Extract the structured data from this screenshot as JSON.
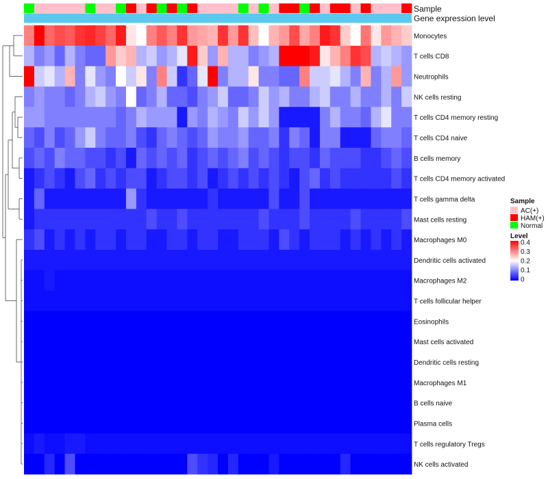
{
  "chart_data": {
    "type": "heatmap",
    "title": "",
    "annotation_tracks": [
      "Sample",
      "Gene expression level"
    ],
    "rows": [
      "Monocytes",
      "T cells CD8",
      "Neutrophils",
      "NK cells resting",
      "T cells CD4 memory resting",
      "T cells CD4 naive",
      "B cells memory",
      "T cells CD4 memory activated",
      "T cells gamma delta",
      "Mast cells resting",
      "Macrophages M0",
      "Dendritic cells activated",
      "Macrophages M2",
      "T cells follicular helper",
      "Eosinophils",
      "Mast cells activated",
      "Dendritic cells resting",
      "Macrophages M1",
      "B cells naive",
      "Plasma cells",
      "T cells regulatory  Tregs",
      "NK cells activated"
    ],
    "sample_groups": [
      "Normal",
      "AC(+)",
      "AC(+)",
      "AC(+)",
      "AC(+)",
      "AC(+)",
      "Normal",
      "AC(+)",
      "AC(+)",
      "Normal",
      "HAM(+)",
      "AC(+)",
      "HAM(+)",
      "Normal",
      "HAM(+)",
      "Normal",
      "HAM(+)",
      "AC(+)",
      "AC(+)",
      "AC(+)",
      "AC(+)",
      "Normal",
      "AC(+)",
      "Normal",
      "AC(+)",
      "HAM(+)",
      "HAM(+)",
      "Normal",
      "HAM(+)",
      "AC(+)",
      "HAM(+)",
      "HAM(+)",
      "AC(+)",
      "HAM(+)",
      "AC(+)",
      "AC(+)",
      "AC(+)",
      "HAM(+)"
    ],
    "values": [
      [
        0.3,
        0.4,
        0.32,
        0.34,
        0.33,
        0.36,
        0.37,
        0.35,
        0.32,
        0.38,
        0.22,
        0.2,
        0.3,
        0.33,
        0.3,
        0.36,
        0.28,
        0.27,
        0.26,
        0.36,
        0.28,
        0.36,
        0.25,
        0.2,
        0.26,
        0.28,
        0.34,
        0.27,
        0.3,
        0.38,
        0.36,
        0.24,
        0.2,
        0.31,
        0.22,
        0.28,
        0.26,
        0.24
      ],
      [
        0.14,
        0.1,
        0.12,
        0.08,
        0.14,
        0.1,
        0.08,
        0.08,
        0.28,
        0.24,
        0.26,
        0.14,
        0.16,
        0.12,
        0.14,
        0.18,
        0.38,
        0.24,
        0.12,
        0.26,
        0.14,
        0.14,
        0.1,
        0.12,
        0.14,
        0.4,
        0.4,
        0.4,
        0.38,
        0.22,
        0.26,
        0.3,
        0.36,
        0.34,
        0.14,
        0.16,
        0.14,
        0.12
      ],
      [
        0.4,
        0.16,
        0.18,
        0.14,
        0.26,
        0.1,
        0.18,
        0.12,
        0.1,
        0.2,
        0.16,
        0.22,
        0.1,
        0.3,
        0.16,
        0.04,
        0.08,
        0.18,
        0.4,
        0.1,
        0.14,
        0.14,
        0.22,
        0.1,
        0.1,
        0.08,
        0.08,
        0.3,
        0.16,
        0.16,
        0.18,
        0.14,
        0.1,
        0.26,
        0.1,
        0.14,
        0.28,
        0.12
      ],
      [
        0.1,
        0.12,
        0.1,
        0.1,
        0.08,
        0.1,
        0.14,
        0.16,
        0.12,
        0.1,
        0.2,
        0.08,
        0.1,
        0.14,
        0.08,
        0.08,
        0.06,
        0.1,
        0.12,
        0.16,
        0.08,
        0.08,
        0.1,
        0.16,
        0.12,
        0.14,
        0.1,
        0.1,
        0.14,
        0.16,
        0.1,
        0.1,
        0.14,
        0.1,
        0.1,
        0.14,
        0.1,
        0.16
      ],
      [
        0.12,
        0.12,
        0.1,
        0.1,
        0.1,
        0.1,
        0.1,
        0.1,
        0.1,
        0.08,
        0.1,
        0.14,
        0.12,
        0.12,
        0.12,
        0.02,
        0.12,
        0.1,
        0.14,
        0.12,
        0.1,
        0.16,
        0.12,
        0.16,
        0.12,
        0.02,
        0.02,
        0.02,
        0.02,
        0.1,
        0.14,
        0.1,
        0.1,
        0.08,
        0.14,
        0.18,
        0.1,
        0.1
      ],
      [
        0.08,
        0.06,
        0.1,
        0.06,
        0.08,
        0.12,
        0.16,
        0.1,
        0.08,
        0.08,
        0.1,
        0.06,
        0.04,
        0.08,
        0.1,
        0.08,
        0.06,
        0.08,
        0.12,
        0.1,
        0.1,
        0.12,
        0.08,
        0.08,
        0.1,
        0.04,
        0.1,
        0.08,
        0.02,
        0.1,
        0.1,
        0.02,
        0.02,
        0.02,
        0.08,
        0.1,
        0.1,
        0.08
      ],
      [
        0.06,
        0.08,
        0.06,
        0.1,
        0.08,
        0.08,
        0.06,
        0.06,
        0.04,
        0.06,
        0.02,
        0.08,
        0.06,
        0.08,
        0.06,
        0.08,
        0.04,
        0.06,
        0.08,
        0.06,
        0.08,
        0.1,
        0.06,
        0.08,
        0.06,
        0.04,
        0.06,
        0.06,
        0.04,
        0.08,
        0.06,
        0.06,
        0.06,
        0.04,
        0.04,
        0.06,
        0.08,
        0.06
      ],
      [
        0.02,
        0.04,
        0.06,
        0.04,
        0.02,
        0.06,
        0.08,
        0.04,
        0.06,
        0.04,
        0.06,
        0.06,
        0.02,
        0.04,
        0.06,
        0.06,
        0.04,
        0.06,
        0.02,
        0.04,
        0.06,
        0.04,
        0.06,
        0.04,
        0.06,
        0.04,
        0.02,
        0.06,
        0.08,
        0.04,
        0.06,
        0.04,
        0.04,
        0.04,
        0.04,
        0.04,
        0.06,
        0.04
      ],
      [
        0.02,
        0.08,
        0.02,
        0.02,
        0.02,
        0.02,
        0.02,
        0.02,
        0.02,
        0.02,
        0.12,
        0.04,
        0.02,
        0.02,
        0.02,
        0.02,
        0.02,
        0.02,
        0.04,
        0.02,
        0.02,
        0.02,
        0.02,
        0.02,
        0.06,
        0.02,
        0.02,
        0.06,
        0.02,
        0.02,
        0.02,
        0.02,
        0.02,
        0.02,
        0.02,
        0.02,
        0.02,
        0.02
      ],
      [
        0.02,
        0.04,
        0.04,
        0.04,
        0.04,
        0.04,
        0.04,
        0.04,
        0.04,
        0.04,
        0.04,
        0.04,
        0.06,
        0.04,
        0.04,
        0.06,
        0.04,
        0.04,
        0.04,
        0.04,
        0.04,
        0.04,
        0.04,
        0.06,
        0.04,
        0.04,
        0.04,
        0.06,
        0.04,
        0.04,
        0.04,
        0.04,
        0.06,
        0.04,
        0.04,
        0.04,
        0.04,
        0.06
      ],
      [
        0.04,
        0.06,
        0.02,
        0.04,
        0.02,
        0.04,
        0.02,
        0.04,
        0.04,
        0.02,
        0.04,
        0.04,
        0.02,
        0.02,
        0.04,
        0.04,
        0.02,
        0.04,
        0.04,
        0.02,
        0.02,
        0.04,
        0.04,
        0.04,
        0.02,
        0.06,
        0.04,
        0.02,
        0.04,
        0.04,
        0.04,
        0.02,
        0.04,
        0.02,
        0.04,
        0.02,
        0.04,
        0.02
      ],
      [
        0.02,
        0.02,
        0.02,
        0.02,
        0.02,
        0.02,
        0.02,
        0.02,
        0.02,
        0.02,
        0.02,
        0.02,
        0.02,
        0.02,
        0.02,
        0.02,
        0.02,
        0.02,
        0.02,
        0.02,
        0.02,
        0.02,
        0.02,
        0.02,
        0.02,
        0.02,
        0.02,
        0.02,
        0.02,
        0.02,
        0.02,
        0.02,
        0.02,
        0.02,
        0.02,
        0.02,
        0.02,
        0.02
      ],
      [
        0.01,
        0.01,
        0.02,
        0.01,
        0.01,
        0.01,
        0.01,
        0.01,
        0.01,
        0.01,
        0.01,
        0.01,
        0.01,
        0.01,
        0.01,
        0.01,
        0.01,
        0.01,
        0.01,
        0.01,
        0.01,
        0.01,
        0.01,
        0.01,
        0.01,
        0.01,
        0.01,
        0.01,
        0.01,
        0.01,
        0.01,
        0.01,
        0.01,
        0.01,
        0.01,
        0.01,
        0.01,
        0.01
      ],
      [
        0.01,
        0.01,
        0.01,
        0.01,
        0.01,
        0.01,
        0.01,
        0.01,
        0.01,
        0.01,
        0.01,
        0.01,
        0.01,
        0.01,
        0.01,
        0.01,
        0.01,
        0.01,
        0.01,
        0.01,
        0.01,
        0.01,
        0.01,
        0.01,
        0.01,
        0.01,
        0.01,
        0.01,
        0.01,
        0.01,
        0.01,
        0.01,
        0.01,
        0.01,
        0.01,
        0.01,
        0.01,
        0.01
      ],
      [
        0.0,
        0.0,
        0.0,
        0.0,
        0.0,
        0.0,
        0.0,
        0.0,
        0.0,
        0.0,
        0.0,
        0.0,
        0.0,
        0.0,
        0.0,
        0.0,
        0.0,
        0.0,
        0.0,
        0.0,
        0.0,
        0.0,
        0.0,
        0.0,
        0.0,
        0.0,
        0.0,
        0.0,
        0.0,
        0.0,
        0.0,
        0.0,
        0.0,
        0.0,
        0.0,
        0.0,
        0.0,
        0.0
      ],
      [
        0.0,
        0.0,
        0.0,
        0.0,
        0.0,
        0.0,
        0.0,
        0.0,
        0.0,
        0.0,
        0.0,
        0.0,
        0.0,
        0.0,
        0.0,
        0.0,
        0.0,
        0.0,
        0.0,
        0.0,
        0.0,
        0.0,
        0.0,
        0.0,
        0.0,
        0.0,
        0.0,
        0.0,
        0.0,
        0.0,
        0.0,
        0.0,
        0.0,
        0.0,
        0.0,
        0.0,
        0.0,
        0.0
      ],
      [
        0.0,
        0.0,
        0.0,
        0.0,
        0.0,
        0.0,
        0.0,
        0.0,
        0.0,
        0.0,
        0.0,
        0.0,
        0.0,
        0.0,
        0.0,
        0.0,
        0.0,
        0.0,
        0.0,
        0.0,
        0.0,
        0.0,
        0.0,
        0.0,
        0.0,
        0.0,
        0.0,
        0.0,
        0.0,
        0.0,
        0.0,
        0.0,
        0.0,
        0.0,
        0.0,
        0.0,
        0.0,
        0.0
      ],
      [
        0.0,
        0.0,
        0.0,
        0.0,
        0.0,
        0.0,
        0.0,
        0.0,
        0.0,
        0.0,
        0.0,
        0.0,
        0.0,
        0.0,
        0.0,
        0.0,
        0.0,
        0.0,
        0.0,
        0.0,
        0.0,
        0.0,
        0.0,
        0.0,
        0.0,
        0.0,
        0.0,
        0.0,
        0.0,
        0.0,
        0.0,
        0.0,
        0.0,
        0.0,
        0.0,
        0.0,
        0.0,
        0.0
      ],
      [
        0.0,
        0.0,
        0.0,
        0.0,
        0.0,
        0.0,
        0.0,
        0.0,
        0.0,
        0.0,
        0.0,
        0.0,
        0.0,
        0.0,
        0.0,
        0.0,
        0.0,
        0.0,
        0.0,
        0.0,
        0.0,
        0.0,
        0.0,
        0.0,
        0.0,
        0.0,
        0.0,
        0.0,
        0.0,
        0.0,
        0.0,
        0.0,
        0.0,
        0.0,
        0.0,
        0.0,
        0.0,
        0.0
      ],
      [
        0.0,
        0.0,
        0.0,
        0.0,
        0.0,
        0.0,
        0.0,
        0.0,
        0.0,
        0.0,
        0.0,
        0.0,
        0.0,
        0.0,
        0.0,
        0.0,
        0.0,
        0.0,
        0.0,
        0.0,
        0.0,
        0.0,
        0.0,
        0.0,
        0.0,
        0.0,
        0.0,
        0.0,
        0.0,
        0.0,
        0.0,
        0.0,
        0.0,
        0.0,
        0.0,
        0.0,
        0.0,
        0.0
      ],
      [
        0.01,
        0.02,
        0.01,
        0.01,
        0.02,
        0.02,
        0.01,
        0.01,
        0.01,
        0.01,
        0.01,
        0.01,
        0.01,
        0.01,
        0.01,
        0.01,
        0.01,
        0.01,
        0.01,
        0.01,
        0.01,
        0.01,
        0.01,
        0.01,
        0.01,
        0.01,
        0.01,
        0.01,
        0.01,
        0.01,
        0.01,
        0.01,
        0.01,
        0.01,
        0.01,
        0.01,
        0.01,
        0.01
      ],
      [
        0.0,
        0.0,
        0.03,
        0.0,
        0.06,
        0.0,
        0.0,
        0.0,
        0.0,
        0.0,
        0.0,
        0.0,
        0.0,
        0.0,
        0.0,
        0.0,
        0.06,
        0.04,
        0.03,
        0.0,
        0.03,
        0.0,
        0.0,
        0.0,
        0.02,
        0.0,
        0.0,
        0.0,
        0.0,
        0.0,
        0.0,
        0.03,
        0.0,
        0.0,
        0.0,
        0.0,
        0.0,
        0.0
      ]
    ],
    "legend_sample": {
      "title": "Sample",
      "entries": [
        {
          "label": "AC(+)",
          "color": "#FFC0CB"
        },
        {
          "label": "HAM(+)",
          "color": "#FF0000"
        },
        {
          "label": "Normal",
          "color": "#00FF00"
        }
      ]
    },
    "legend_level": {
      "title": "Level",
      "ticks": [
        "0.4",
        "0.3",
        "0.2",
        "0.1",
        "0"
      ],
      "range": [
        0,
        0.4
      ]
    },
    "colors": {
      "low": "#0000FF",
      "mid": "#FFFFFF",
      "high": "#FF0000",
      "expression_track": "#5BC8EE"
    }
  }
}
